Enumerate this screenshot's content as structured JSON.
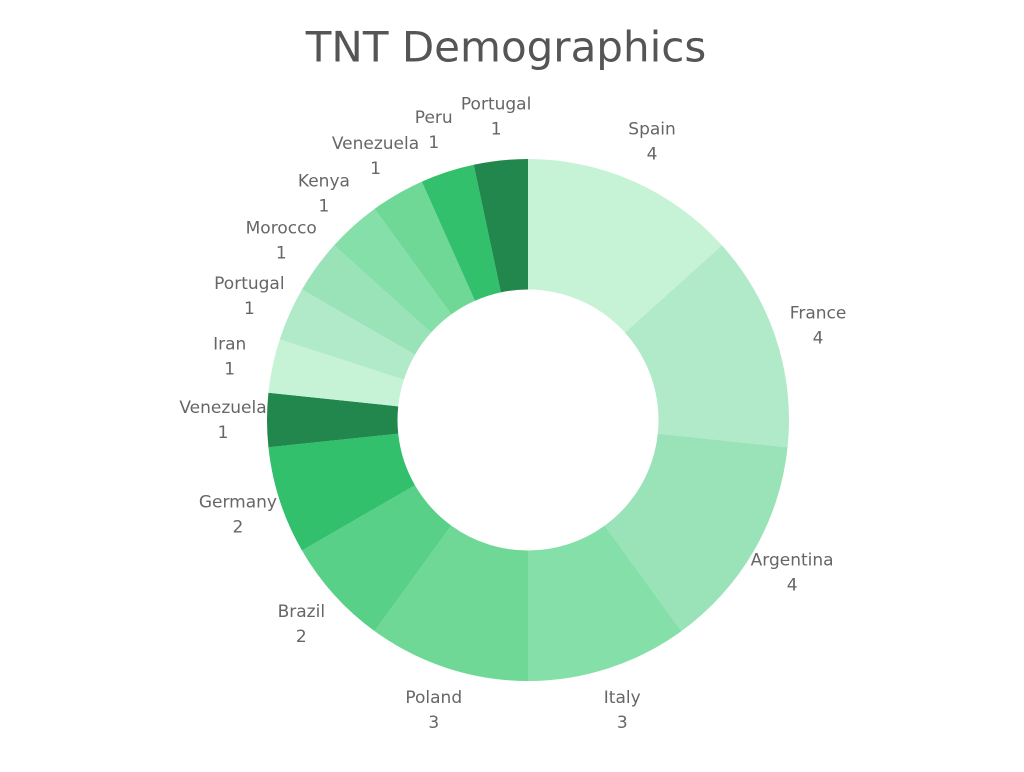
{
  "chart_data": {
    "type": "pie",
    "title": "TNT Demographics",
    "hole": 0.5,
    "categories": [
      "Spain",
      "France",
      "Argentina",
      "Italy",
      "Poland",
      "Brazil",
      "Germany",
      "Venezuela",
      "Iran",
      "Portugal",
      "Morocco",
      "Kenya",
      "Venezuela",
      "Peru",
      "Portugal"
    ],
    "values": [
      4,
      4,
      4,
      3,
      3,
      2,
      2,
      1,
      1,
      1,
      1,
      1,
      1,
      1,
      1
    ],
    "colors": [
      "#c6f2d6",
      "#b0eac8",
      "#9ae3b8",
      "#85dfa8",
      "#6fd897",
      "#58d087",
      "#32c06c",
      "#21874c",
      "#c6f2d6",
      "#b0eac8",
      "#9ae3b8",
      "#85dfa8",
      "#6fd897",
      "#32c06c",
      "#21874c"
    ]
  }
}
